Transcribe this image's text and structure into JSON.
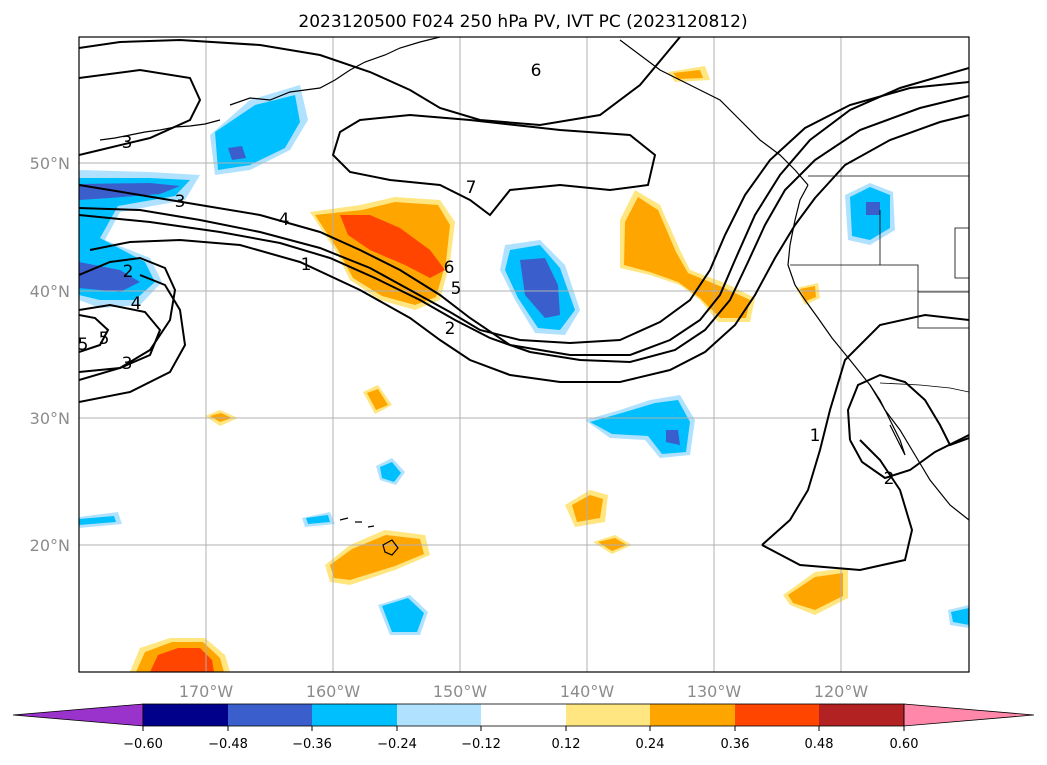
{
  "title": "2023120500 F024 250 hPa PV, IVT PC (2023120812)",
  "lat_labels": [
    "50°N",
    "40°N",
    "30°N",
    "20°N"
  ],
  "lon_labels": [
    "170°W",
    "160°W",
    "150°W",
    "140°W",
    "130°W",
    "120°W"
  ],
  "colorbar": {
    "tick_labels": [
      "−0.60",
      "−0.48",
      "−0.36",
      "−0.24",
      "−0.12",
      "0.12",
      "0.24",
      "0.36",
      "0.48",
      "0.60"
    ],
    "colors": [
      "#9933cc",
      "#00008b",
      "#3a5fcd",
      "#00bfff",
      "#b0e2ff",
      "#ffffff",
      "#ffe680",
      "#ffa500",
      "#ff4500",
      "#b22222",
      "#ff88aa"
    ]
  },
  "contour_labels": [
    "6",
    "3",
    "3",
    "4",
    "1",
    "7",
    "6",
    "5",
    "2",
    "2",
    "4",
    "5",
    "5",
    "3",
    "1",
    "2"
  ],
  "colors": {
    "neg_light": "#b0e2ff",
    "neg_mid": "#00bfff",
    "neg_strong": "#3a5fcd",
    "pos_light": "#ffe680",
    "pos_mid": "#ffa500",
    "pos_strong": "#ff4500"
  }
}
